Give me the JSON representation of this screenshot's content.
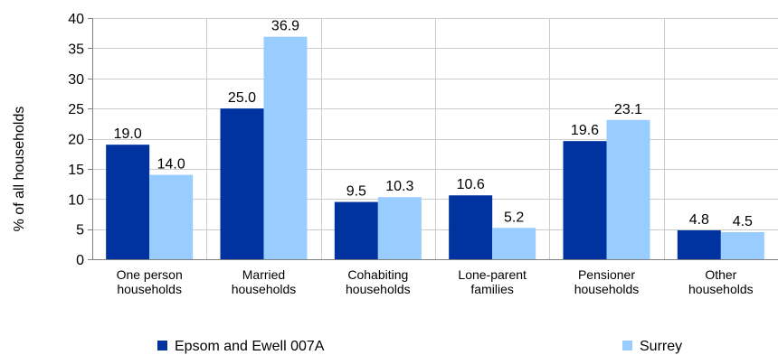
{
  "chart_data": {
    "type": "bar",
    "title": "",
    "xlabel": "",
    "ylabel": "% of all households",
    "ylim": [
      0,
      40
    ],
    "yticks": [
      0,
      5,
      10,
      15,
      20,
      25,
      30,
      35,
      40
    ],
    "grid": true,
    "legend_position": "bottom",
    "categories": [
      [
        "One person",
        "households"
      ],
      [
        "Married",
        "households"
      ],
      [
        "Cohabiting",
        "households"
      ],
      [
        "Lone-parent",
        "families"
      ],
      [
        "Pensioner",
        "households"
      ],
      [
        "Other",
        "households"
      ]
    ],
    "series": [
      {
        "name": "Epsom and Ewell 007A",
        "color": "#0033a0",
        "values": [
          19.0,
          25.0,
          9.5,
          10.6,
          19.6,
          4.8
        ]
      },
      {
        "name": "Surrey",
        "color": "#99ccff",
        "values": [
          14.0,
          36.9,
          10.3,
          5.2,
          23.1,
          4.5
        ]
      }
    ],
    "colors": {
      "grid": "#cccccc",
      "axis": "#808080"
    }
  }
}
